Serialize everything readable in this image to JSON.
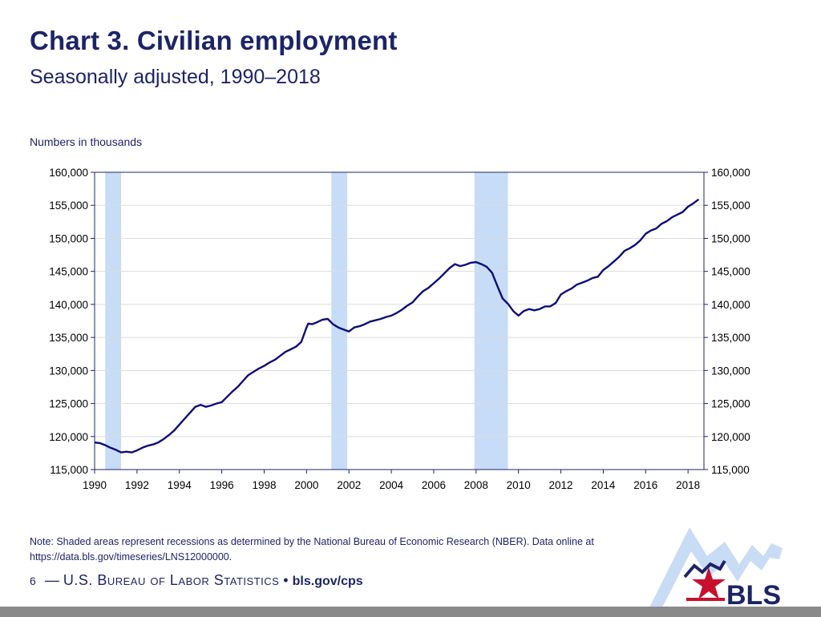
{
  "slide": {
    "title": "Chart 3. Civilian employment",
    "subtitle": "Seasonally adjusted, 1990–2018",
    "note": "Note: Shaded areas represent recessions as determined by the National Bureau of Economic Research (NBER).  Data online at https://data.bls.gov/timeseries/LNS12000000.",
    "footer_page": "6",
    "footer_dash": "—",
    "footer_agency": "U.S. Bureau of Labor Statistics",
    "footer_bullet": "•",
    "footer_site": "bls.gov/cps",
    "logo_text": "BLS"
  },
  "colors": {
    "line": "#0d0d7a",
    "recession": "#c6dcf7",
    "grid": "#dcdcdc",
    "text": "#1c2468",
    "logo_red": "#c8102e",
    "logo_blue": "#1c2468",
    "logo_arrow": "#c9dcf6"
  },
  "chart_data": {
    "type": "line",
    "title": "Chart 3. Civilian employment",
    "subtitle": "Seasonally adjusted, 1990–2018",
    "ylabel": "Numbers in thousands",
    "xlabel": "",
    "xlim": [
      1990,
      2018.75
    ],
    "ylim": [
      115000,
      160000
    ],
    "yticks": [
      115000,
      120000,
      125000,
      130000,
      135000,
      140000,
      145000,
      150000,
      155000,
      160000
    ],
    "ytick_labels": [
      "115,000",
      "120,000",
      "125,000",
      "130,000",
      "135,000",
      "140,000",
      "145,000",
      "150,000",
      "155,000",
      "160,000"
    ],
    "xticks": [
      1990,
      1992,
      1994,
      1996,
      1998,
      2000,
      2002,
      2004,
      2006,
      2008,
      2010,
      2012,
      2014,
      2016,
      2018
    ],
    "xtick_labels": [
      "1990",
      "1992",
      "1994",
      "1996",
      "1998",
      "2000",
      "2002",
      "2004",
      "2006",
      "2008",
      "2010",
      "2012",
      "2014",
      "2016",
      "2018"
    ],
    "grid": true,
    "recessions": [
      {
        "start": 1990.5,
        "end": 1991.25
      },
      {
        "start": 2001.17,
        "end": 2001.92
      },
      {
        "start": 2007.92,
        "end": 2009.5
      }
    ],
    "series": [
      {
        "x": [
          1990.0,
          1990.25,
          1990.5,
          1990.75,
          1991.0,
          1991.25,
          1991.5,
          1991.75,
          1992.0,
          1992.25,
          1992.5,
          1992.75,
          1993.0,
          1993.25,
          1993.5,
          1993.75,
          1994.0,
          1994.25,
          1994.5,
          1994.75,
          1995.0,
          1995.25,
          1995.5,
          1995.75,
          1996.0,
          1996.25,
          1996.5,
          1996.75,
          1997.0,
          1997.25,
          1997.5,
          1997.75,
          1998.0,
          1998.25,
          1998.5,
          1998.75,
          1999.0,
          1999.25,
          1999.5,
          1999.75,
          2000.0,
          2000.08,
          2000.25,
          2000.5,
          2000.75,
          2001.0,
          2001.25,
          2001.5,
          2001.75,
          2002.0,
          2002.25,
          2002.5,
          2002.75,
          2003.0,
          2003.25,
          2003.5,
          2003.75,
          2004.0,
          2004.25,
          2004.5,
          2004.75,
          2005.0,
          2005.25,
          2005.5,
          2005.75,
          2006.0,
          2006.25,
          2006.5,
          2006.75,
          2007.0,
          2007.25,
          2007.5,
          2007.75,
          2008.0,
          2008.25,
          2008.5,
          2008.75,
          2009.0,
          2009.25,
          2009.5,
          2009.75,
          2010.0,
          2010.25,
          2010.5,
          2010.75,
          2011.0,
          2011.25,
          2011.5,
          2011.75,
          2012.0,
          2012.25,
          2012.5,
          2012.75,
          2013.0,
          2013.25,
          2013.5,
          2013.75,
          2014.0,
          2014.25,
          2014.5,
          2014.75,
          2015.0,
          2015.25,
          2015.5,
          2015.75,
          2016.0,
          2016.25,
          2016.5,
          2016.75,
          2017.0,
          2017.25,
          2017.5,
          2017.75,
          2018.0,
          2018.25,
          2018.5
        ],
        "values": [
          119100,
          119000,
          118700,
          118300,
          118000,
          117600,
          117700,
          117600,
          117900,
          118300,
          118600,
          118800,
          119100,
          119600,
          120200,
          120900,
          121800,
          122700,
          123600,
          124500,
          124800,
          124500,
          124700,
          125000,
          125200,
          126000,
          126800,
          127500,
          128400,
          129300,
          129800,
          130300,
          130700,
          131200,
          131600,
          132200,
          132800,
          133200,
          133600,
          134300,
          136500,
          137100,
          137000,
          137300,
          137700,
          137800,
          137000,
          136500,
          136200,
          135900,
          136500,
          136700,
          137000,
          137400,
          137600,
          137800,
          138100,
          138300,
          138700,
          139200,
          139800,
          140300,
          141200,
          142000,
          142500,
          143200,
          143900,
          144700,
          145500,
          146100,
          145800,
          146000,
          146300,
          146400,
          146100,
          145700,
          144800,
          142800,
          140900,
          140100,
          139000,
          138300,
          139000,
          139300,
          139100,
          139300,
          139700,
          139700,
          140200,
          141500,
          142000,
          142400,
          143000,
          143300,
          143600,
          144000,
          144200,
          145200,
          145800,
          146500,
          147200,
          148100,
          148500,
          149000,
          149700,
          150700,
          151200,
          151500,
          152200,
          152600,
          153200,
          153600,
          154000,
          154800,
          155300,
          155900
        ]
      }
    ]
  }
}
